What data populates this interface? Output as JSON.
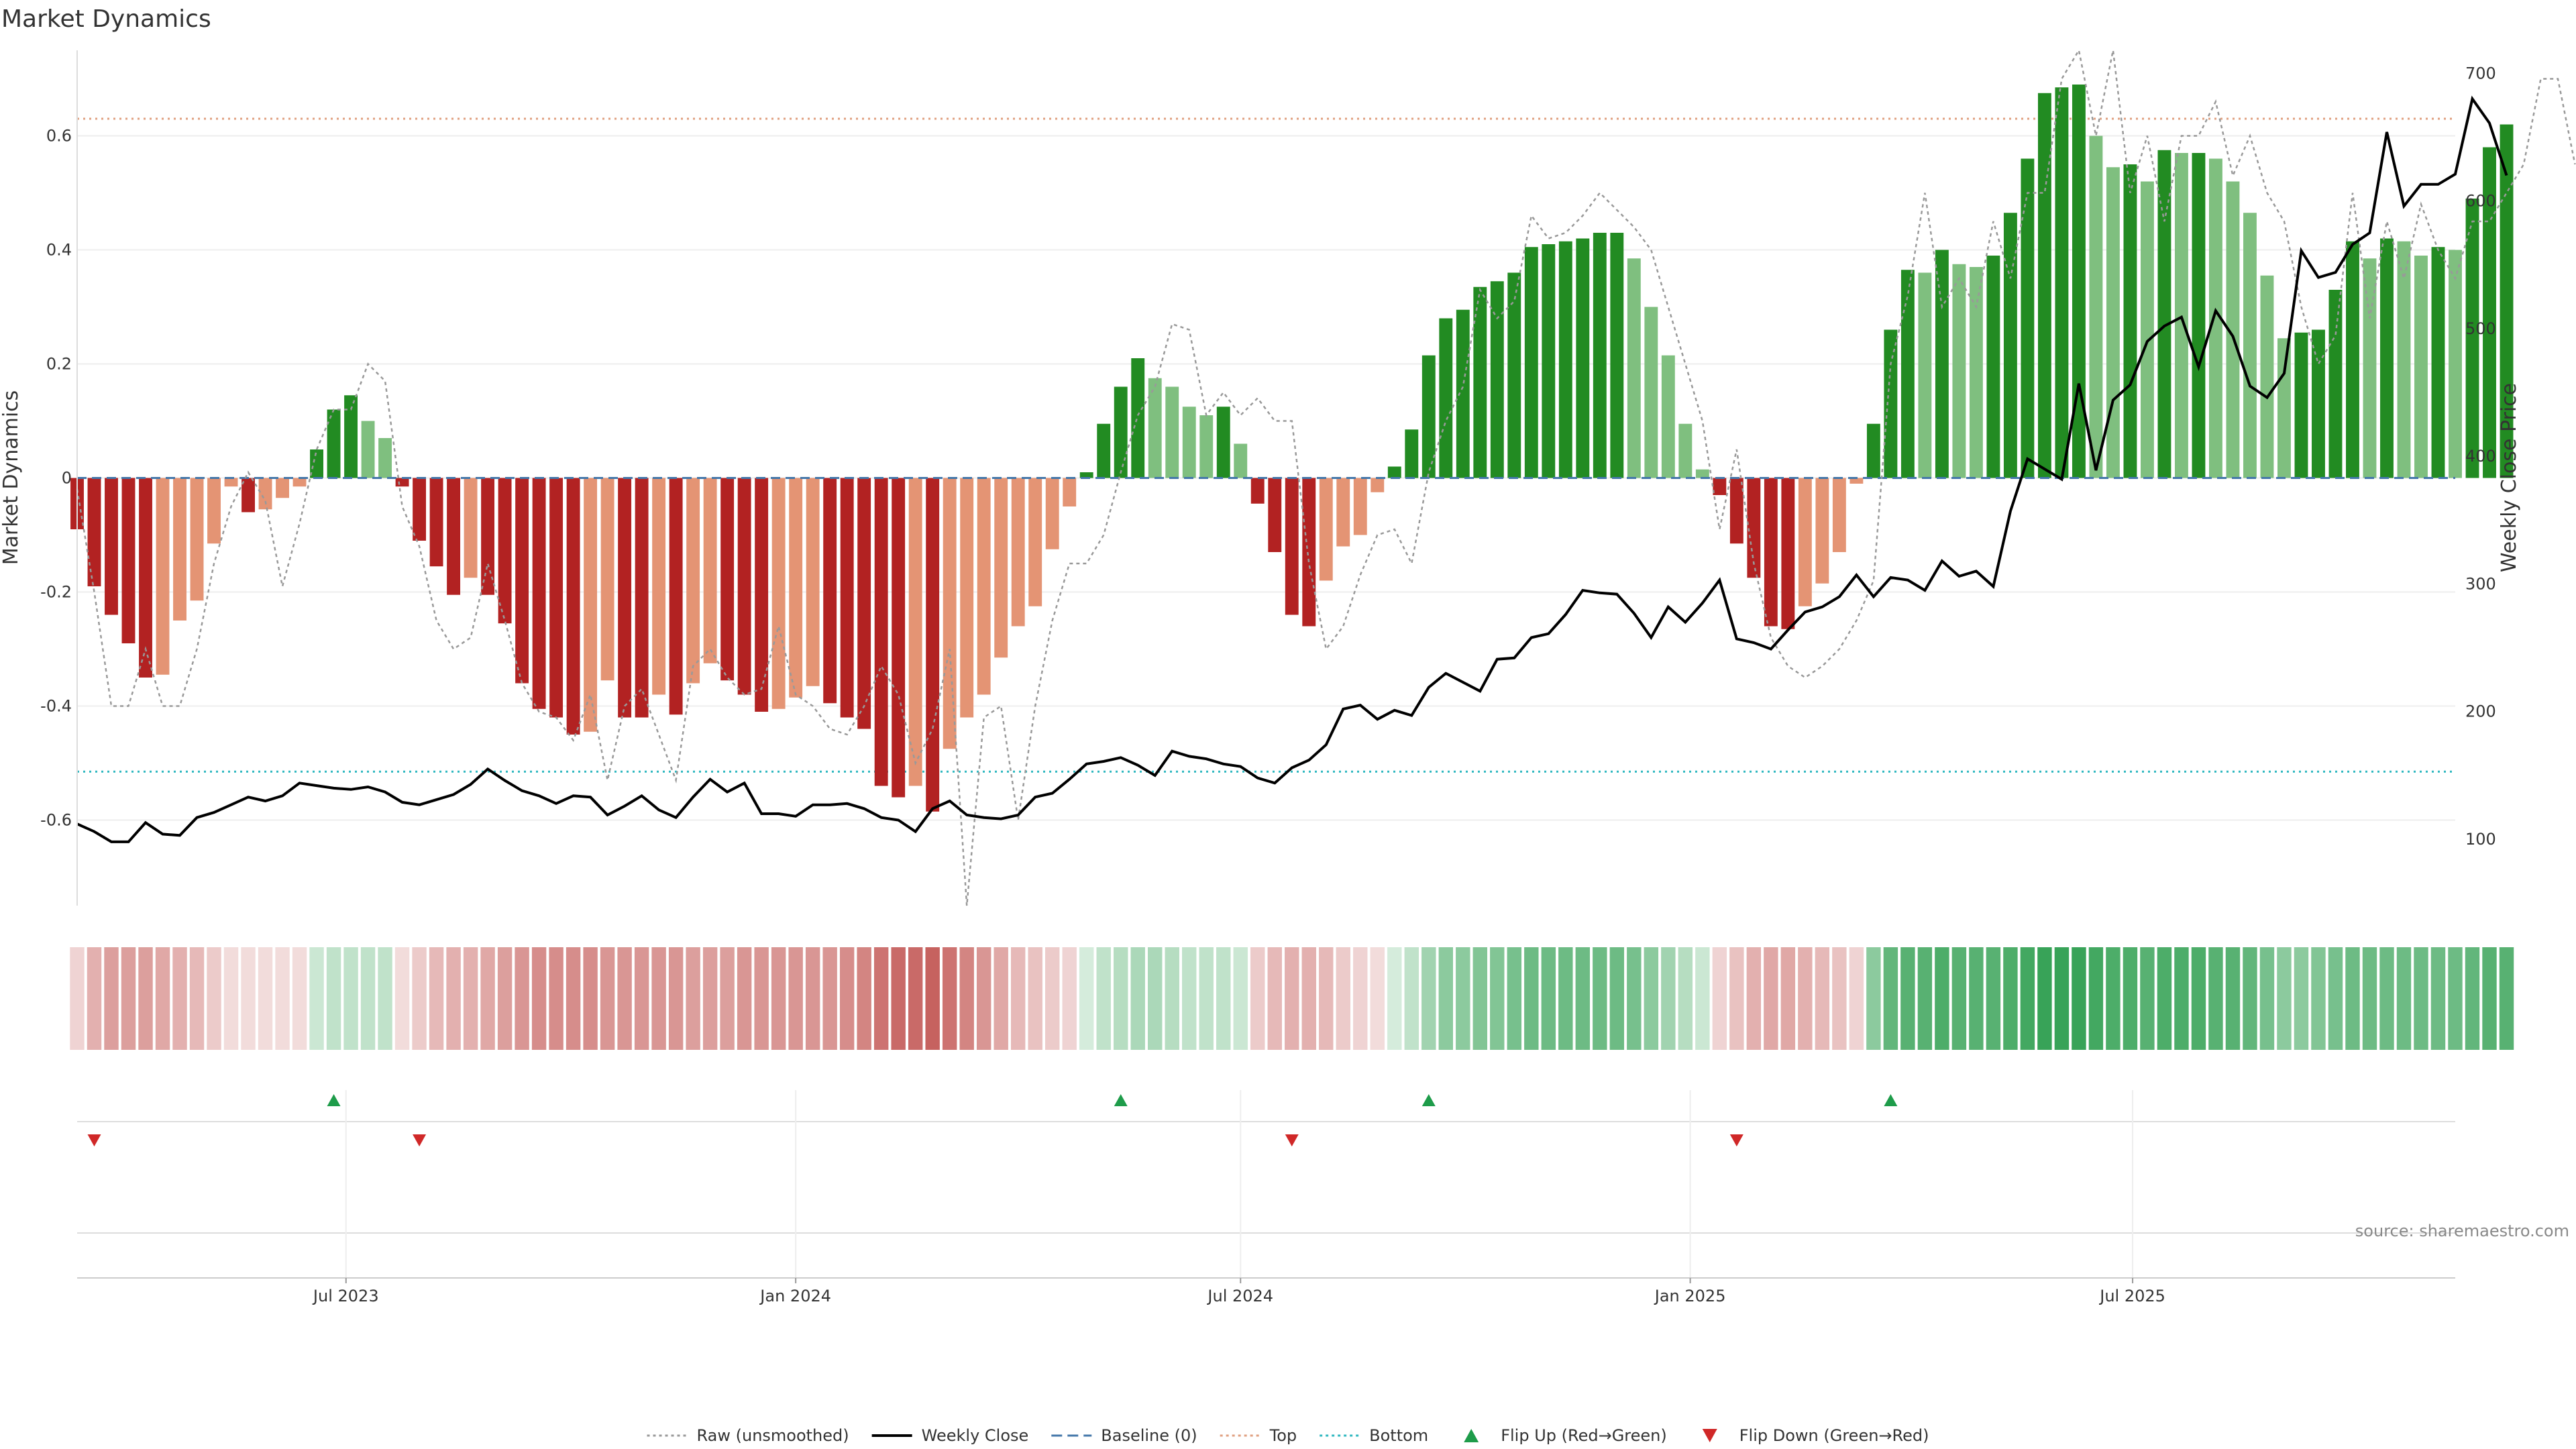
{
  "chart_data": {
    "type": "bar",
    "title": "Market Dynamics",
    "ylabel_left": "Market Dynamics",
    "ylabel_right": "Weekly Close Price",
    "ylim_left": [
      -0.75,
      0.75
    ],
    "ylim_right": [
      48,
      718
    ],
    "yticks_left": [
      -0.6,
      -0.4,
      -0.2,
      0,
      0.2,
      0.4,
      0.6
    ],
    "yticks_left_labels": [
      "-0.6",
      "-0.4",
      "-0.2",
      "0",
      "0.2",
      "0.4",
      "0.6"
    ],
    "yticks_right": [
      100,
      200,
      300,
      400,
      500,
      600,
      700
    ],
    "yticks_right_labels": [
      "100",
      "200",
      "300",
      "400",
      "500",
      "600",
      "700"
    ],
    "x_range": [
      "2023-03-13",
      "2025-11-10"
    ],
    "xticks": [
      {
        "date": "2023-07-01",
        "label": "Jul 2023"
      },
      {
        "date": "2024-01-01",
        "label": "Jan 2024"
      },
      {
        "date": "2024-07-01",
        "label": "Jul 2024"
      },
      {
        "date": "2025-01-01",
        "label": "Jan 2025"
      },
      {
        "date": "2025-07-01",
        "label": "Jul 2025"
      }
    ],
    "first_week": "2023-03-13",
    "top_threshold": 0.63,
    "bottom_threshold": -0.515,
    "baseline": 0,
    "series": [
      {
        "name": "Market Dynamics",
        "values": [
          -0.09,
          -0.19,
          -0.24,
          -0.29,
          -0.35,
          -0.345,
          -0.25,
          -0.215,
          -0.115,
          -0.015,
          -0.06,
          -0.055,
          -0.035,
          -0.015,
          0.05,
          0.12,
          0.145,
          0.1,
          0.07,
          -0.015,
          -0.11,
          -0.155,
          -0.205,
          -0.175,
          -0.205,
          -0.255,
          -0.36,
          -0.405,
          -0.42,
          -0.45,
          -0.445,
          -0.355,
          -0.42,
          -0.42,
          -0.38,
          -0.415,
          -0.36,
          -0.325,
          -0.355,
          -0.38,
          -0.41,
          -0.405,
          -0.385,
          -0.365,
          -0.395,
          -0.42,
          -0.44,
          -0.54,
          -0.56,
          -0.54,
          -0.585,
          -0.475,
          -0.42,
          -0.38,
          -0.315,
          -0.26,
          -0.225,
          -0.125,
          -0.05,
          0.01,
          0.095,
          0.16,
          0.21,
          0.175,
          0.16,
          0.125,
          0.11,
          0.125,
          0.06,
          -0.045,
          -0.13,
          -0.24,
          -0.26,
          -0.18,
          -0.12,
          -0.1,
          -0.025,
          0.02,
          0.085,
          0.215,
          0.28,
          0.295,
          0.335,
          0.345,
          0.36,
          0.405,
          0.41,
          0.415,
          0.42,
          0.43,
          0.43,
          0.385,
          0.3,
          0.215,
          0.095,
          0.015,
          -0.03,
          -0.115,
          -0.175,
          -0.26,
          -0.265,
          -0.225,
          -0.185,
          -0.13,
          -0.01,
          0.095,
          0.26,
          0.365,
          0.36,
          0.4,
          0.375,
          0.37,
          0.39,
          0.465,
          0.56,
          0.675,
          0.685,
          0.69,
          0.6,
          0.545,
          0.55,
          0.52,
          0.575,
          0.57,
          0.57,
          0.56,
          0.52,
          0.465,
          0.355,
          0.245,
          0.255,
          0.26,
          0.33,
          0.415,
          0.385,
          0.42,
          0.415,
          0.39,
          0.405,
          0.4,
          0.49,
          0.58,
          0.62
        ]
      },
      {
        "name": "Raw (unsmoothed)",
        "values": [
          -0.02,
          -0.2,
          -0.4,
          -0.4,
          -0.3,
          -0.4,
          -0.4,
          -0.3,
          -0.15,
          -0.05,
          0.01,
          -0.04,
          -0.19,
          -0.08,
          0.05,
          0.12,
          0.12,
          0.2,
          0.17,
          -0.05,
          -0.12,
          -0.25,
          -0.3,
          -0.28,
          -0.15,
          -0.25,
          -0.36,
          -0.41,
          -0.42,
          -0.46,
          -0.38,
          -0.53,
          -0.4,
          -0.37,
          -0.45,
          -0.53,
          -0.33,
          -0.3,
          -0.35,
          -0.38,
          -0.37,
          -0.26,
          -0.38,
          -0.4,
          -0.44,
          -0.45,
          -0.4,
          -0.33,
          -0.38,
          -0.5,
          -0.44,
          -0.3,
          -0.75,
          -0.42,
          -0.4,
          -0.6,
          -0.4,
          -0.25,
          -0.15,
          -0.15,
          -0.1,
          0.01,
          0.11,
          0.16,
          0.27,
          0.26,
          0.11,
          0.15,
          0.11,
          0.14,
          0.1,
          0.1,
          -0.15,
          -0.3,
          -0.26,
          -0.17,
          -0.1,
          -0.09,
          -0.15,
          0.01,
          0.1,
          0.16,
          0.33,
          0.28,
          0.31,
          0.46,
          0.42,
          0.43,
          0.46,
          0.5,
          0.47,
          0.44,
          0.4,
          0.3,
          0.2,
          0.1,
          -0.09,
          0.05,
          -0.15,
          -0.28,
          -0.33,
          -0.35,
          -0.33,
          -0.3,
          -0.25,
          -0.18,
          0.2,
          0.32,
          0.5,
          0.3,
          0.35,
          0.3,
          0.45,
          0.35,
          0.5,
          0.5,
          0.7,
          0.75,
          0.6,
          0.8,
          0.5,
          0.6,
          0.45,
          0.6,
          0.6,
          0.66,
          0.53,
          0.6,
          0.5,
          0.45,
          0.3,
          0.2,
          0.25,
          0.5,
          0.28,
          0.45,
          0.35,
          0.48,
          0.4,
          0.35,
          0.45,
          0.45,
          0.5,
          0.55,
          0.7,
          0.7,
          0.55
        ]
      },
      {
        "name": "Weekly Close",
        "values": [
          112,
          106,
          98,
          98,
          113,
          104,
          103,
          117,
          121,
          127,
          133,
          130,
          134,
          144,
          142,
          140,
          139,
          141,
          137,
          129,
          127,
          131,
          135,
          143,
          155,
          146,
          138,
          134,
          128,
          134,
          133,
          119,
          126,
          134,
          123,
          117,
          133,
          147,
          137,
          144,
          120,
          120,
          118,
          127,
          127,
          128,
          124,
          117,
          115,
          106,
          124,
          130,
          119,
          117,
          116,
          119,
          133,
          136,
          147,
          159,
          161,
          164,
          158,
          150,
          169,
          165,
          163,
          159,
          157,
          148,
          144,
          156,
          162,
          174,
          202,
          205,
          194,
          201,
          197,
          219,
          230,
          223,
          216,
          241,
          242,
          258,
          261,
          276,
          295,
          293,
          292,
          277,
          258,
          282,
          270,
          285,
          303,
          257,
          254,
          249,
          264,
          278,
          282,
          290,
          307,
          290,
          305,
          303,
          295,
          318,
          306,
          310,
          298,
          357,
          398,
          390,
          382,
          457,
          389,
          444,
          456,
          490,
          502,
          509,
          470,
          514,
          494,
          455,
          446,
          465,
          561,
          540,
          544,
          566,
          575,
          654,
          596,
          613,
          613,
          621,
          680,
          661,
          620
        ]
      }
    ],
    "heat_values": [
      0.25,
      0.45,
      0.55,
      0.55,
      0.55,
      0.5,
      0.45,
      0.4,
      0.3,
      0.2,
      0.2,
      0.2,
      0.2,
      0.2,
      0.25,
      0.3,
      0.3,
      0.3,
      0.3,
      0.2,
      0.3,
      0.4,
      0.45,
      0.45,
      0.5,
      0.55,
      0.6,
      0.65,
      0.65,
      0.65,
      0.65,
      0.6,
      0.6,
      0.6,
      0.6,
      0.6,
      0.55,
      0.55,
      0.55,
      0.6,
      0.6,
      0.6,
      0.6,
      0.6,
      0.6,
      0.65,
      0.7,
      0.8,
      0.85,
      0.85,
      0.9,
      0.8,
      0.7,
      0.6,
      0.5,
      0.4,
      0.35,
      0.3,
      0.25,
      0.2,
      0.3,
      0.35,
      0.4,
      0.4,
      0.35,
      0.3,
      0.3,
      0.3,
      0.25,
      0.3,
      0.4,
      0.45,
      0.45,
      0.4,
      0.3,
      0.25,
      0.2,
      0.2,
      0.3,
      0.45,
      0.55,
      0.55,
      0.6,
      0.6,
      0.65,
      0.7,
      0.7,
      0.7,
      0.7,
      0.7,
      0.7,
      0.65,
      0.55,
      0.45,
      0.35,
      0.25,
      0.25,
      0.35,
      0.45,
      0.5,
      0.5,
      0.45,
      0.4,
      0.35,
      0.25,
      0.55,
      0.75,
      0.8,
      0.8,
      0.85,
      0.8,
      0.8,
      0.8,
      0.85,
      0.9,
      0.95,
      0.95,
      0.95,
      0.9,
      0.85,
      0.85,
      0.8,
      0.85,
      0.85,
      0.85,
      0.8,
      0.8,
      0.75,
      0.65,
      0.55,
      0.55,
      0.6,
      0.65,
      0.7,
      0.7,
      0.7,
      0.7,
      0.7,
      0.7,
      0.7,
      0.75,
      0.8,
      0.8
    ],
    "flips_up": [
      15,
      61,
      79,
      106
    ],
    "flips_down": [
      1,
      20,
      71,
      97
    ],
    "legend": [
      {
        "label": "Raw (unsmoothed)",
        "style": "dotted",
        "color": "#999999"
      },
      {
        "label": "Weekly Close",
        "style": "solid",
        "color": "#000000"
      },
      {
        "label": "Baseline (0)",
        "style": "dashed",
        "color": "#4477aa"
      },
      {
        "label": "Top",
        "style": "dotted",
        "color": "#e0a080"
      },
      {
        "label": "Bottom",
        "style": "dotted",
        "color": "#30b8c0"
      },
      {
        "label": "Flip Up (Red→Green)",
        "style": "triangle-up",
        "color": "#1e9c4a"
      },
      {
        "label": "Flip Down (Green→Red)",
        "style": "triangle-down",
        "color": "#d02828"
      }
    ],
    "legend_placement": "bottom",
    "source": "source: sharemaestro.com",
    "colors": {
      "strong_green": "#228b22",
      "light_green": "#7fbf7f",
      "strong_red": "#b22222",
      "light_red": "#e49474",
      "heat_green": "#2e9e4f",
      "heat_red": "#c0504d"
    }
  }
}
